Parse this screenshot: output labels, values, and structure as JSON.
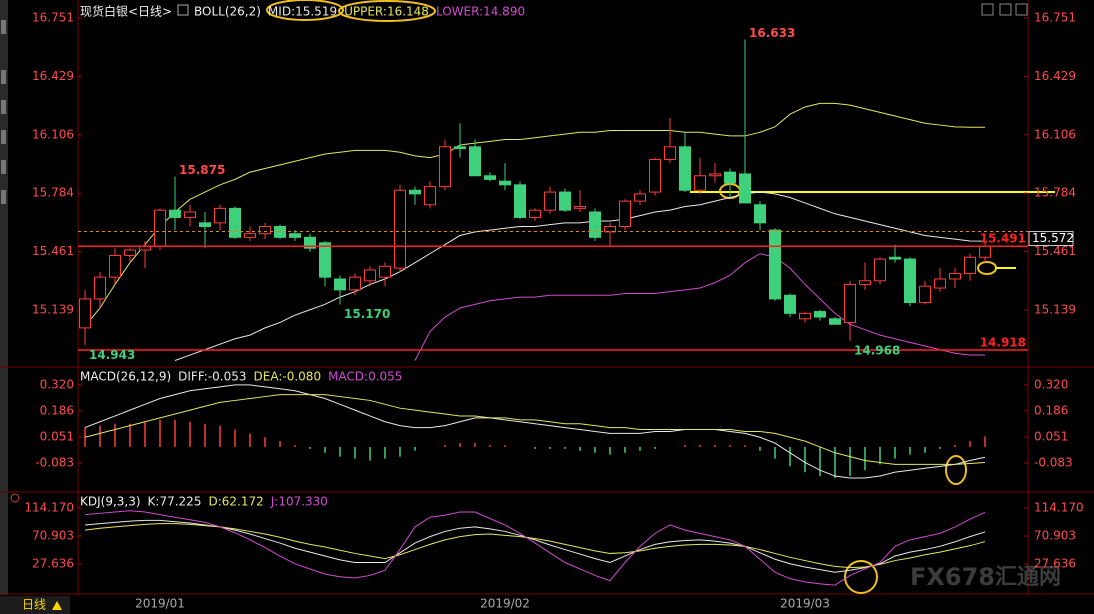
{
  "chart_data": [
    {
      "type": "candlestick",
      "title": "现货白银<日线>",
      "indicator": "BOLL(26,2)",
      "categories": [
        null,
        null,
        null,
        null,
        null,
        "2019/01",
        null,
        null,
        null,
        null,
        null,
        null,
        null,
        null,
        null,
        null,
        null,
        null,
        null,
        null,
        null,
        null,
        null,
        null,
        null,
        null,
        null,
        null,
        "2019/02",
        null,
        null,
        null,
        null,
        null,
        null,
        null,
        null,
        null,
        null,
        null,
        null,
        null,
        null,
        null,
        null,
        null,
        null,
        null,
        "2019/03",
        null,
        null,
        null,
        null,
        null,
        null,
        null,
        null,
        null,
        null,
        null,
        null
      ],
      "open": [
        15.04,
        15.2,
        15.32,
        15.44,
        15.47,
        15.49,
        15.69,
        15.65,
        15.62,
        15.62,
        15.7,
        15.54,
        15.56,
        15.6,
        15.56,
        15.54,
        15.51,
        15.31,
        15.25,
        15.3,
        15.32,
        15.37,
        15.8,
        15.72,
        15.82,
        16.04,
        16.04,
        15.88,
        15.85,
        15.83,
        15.65,
        15.69,
        15.79,
        15.7,
        15.68,
        15.57,
        15.6,
        15.74,
        15.79,
        15.97,
        16.04,
        15.8,
        15.88,
        15.9,
        15.89,
        15.72,
        15.58,
        15.22,
        15.09,
        15.13,
        15.09,
        15.07,
        15.28,
        15.3,
        15.43,
        15.42,
        15.18,
        15.26,
        15.31,
        15.34,
        15.43
      ],
      "high": [
        15.25,
        15.35,
        15.48,
        15.48,
        15.52,
        15.7,
        15.875,
        15.72,
        15.68,
        15.72,
        15.71,
        15.6,
        15.62,
        15.61,
        15.58,
        15.56,
        15.52,
        15.33,
        15.34,
        15.38,
        15.4,
        15.83,
        15.82,
        15.85,
        16.08,
        16.17,
        16.08,
        15.9,
        15.95,
        15.85,
        15.7,
        15.82,
        15.81,
        15.8,
        15.7,
        15.62,
        15.75,
        15.8,
        15.98,
        16.2,
        16.12,
        15.98,
        15.95,
        15.92,
        16.633,
        15.74,
        15.59,
        15.23,
        15.13,
        15.14,
        15.1,
        15.3,
        15.4,
        15.43,
        15.5,
        15.43,
        15.3,
        15.37,
        15.37,
        15.45,
        15.52
      ],
      "low": [
        14.943,
        15.15,
        15.28,
        15.4,
        15.37,
        15.47,
        15.58,
        15.6,
        15.48,
        15.58,
        15.53,
        15.52,
        15.53,
        15.53,
        15.52,
        15.46,
        15.27,
        15.17,
        15.22,
        15.27,
        15.27,
        15.35,
        15.72,
        15.7,
        15.8,
        15.98,
        15.88,
        15.85,
        15.8,
        15.64,
        15.63,
        15.67,
        15.68,
        15.68,
        15.52,
        15.49,
        15.58,
        15.72,
        15.77,
        15.95,
        15.79,
        15.78,
        15.84,
        15.76,
        15.73,
        15.58,
        15.19,
        15.1,
        15.07,
        15.08,
        15.06,
        14.968,
        15.25,
        15.28,
        15.4,
        15.16,
        15.17,
        15.24,
        15.26,
        15.3,
        15.4
      ],
      "close": [
        15.2,
        15.32,
        15.44,
        15.47,
        15.49,
        15.69,
        15.65,
        15.68,
        15.6,
        15.7,
        15.54,
        15.56,
        15.6,
        15.54,
        15.54,
        15.48,
        15.32,
        15.25,
        15.32,
        15.36,
        15.38,
        15.8,
        15.78,
        15.82,
        16.04,
        16.03,
        15.88,
        15.86,
        15.83,
        15.65,
        15.69,
        15.79,
        15.69,
        15.71,
        15.54,
        15.6,
        15.74,
        15.78,
        15.97,
        16.04,
        15.8,
        15.88,
        15.89,
        15.84,
        15.73,
        15.62,
        15.2,
        15.12,
        15.12,
        15.1,
        15.06,
        15.28,
        15.3,
        15.42,
        15.42,
        15.18,
        15.27,
        15.31,
        15.34,
        15.43,
        15.49
      ],
      "up_color": "#ff3c3c",
      "down_color": "#3ed07a",
      "series": [
        {
          "label": "MID:15.519",
          "color": "#e8e8e8",
          "values": [
            null,
            null,
            null,
            null,
            null,
            null,
            14.86,
            14.89,
            14.92,
            14.95,
            14.98,
            15.0,
            15.04,
            15.07,
            15.11,
            15.14,
            15.17,
            15.21,
            15.24,
            15.28,
            15.31,
            15.35,
            15.4,
            15.45,
            15.5,
            15.55,
            15.57,
            15.58,
            15.59,
            15.6,
            15.6,
            15.61,
            15.62,
            15.62,
            15.63,
            15.63,
            15.64,
            15.66,
            15.68,
            15.69,
            15.71,
            15.72,
            15.74,
            15.76,
            15.78,
            15.79,
            15.78,
            15.76,
            15.73,
            15.7,
            15.67,
            15.65,
            15.63,
            15.61,
            15.59,
            15.57,
            15.55,
            15.54,
            15.53,
            15.52,
            15.519
          ]
        },
        {
          "label": "UPPER:16.148",
          "color": "#e6e65a",
          "values": [
            15.05,
            15.15,
            15.28,
            15.4,
            15.5,
            15.6,
            15.68,
            15.75,
            15.79,
            15.83,
            15.86,
            15.9,
            15.92,
            15.94,
            15.96,
            15.98,
            16.0,
            16.01,
            16.02,
            16.02,
            16.02,
            16.01,
            15.99,
            15.98,
            16.0,
            16.05,
            16.06,
            16.07,
            16.08,
            16.08,
            16.09,
            16.1,
            16.11,
            16.12,
            16.12,
            16.13,
            16.13,
            16.13,
            16.13,
            16.13,
            16.12,
            16.12,
            16.11,
            16.1,
            16.1,
            16.12,
            16.15,
            16.22,
            16.26,
            16.28,
            16.28,
            16.27,
            16.25,
            16.23,
            16.21,
            16.19,
            16.17,
            16.16,
            16.15,
            16.148,
            16.148
          ]
        },
        {
          "label": "LOWER:14.890",
          "color": "#d24bd2",
          "values": [
            null,
            null,
            null,
            null,
            null,
            null,
            null,
            null,
            null,
            null,
            null,
            null,
            null,
            null,
            null,
            null,
            null,
            null,
            null,
            null,
            null,
            null,
            14.86,
            15.02,
            15.1,
            15.15,
            15.17,
            15.19,
            15.2,
            15.21,
            15.21,
            15.22,
            15.22,
            15.22,
            15.22,
            15.22,
            15.23,
            15.23,
            15.23,
            15.24,
            15.25,
            15.26,
            15.29,
            15.33,
            15.4,
            15.45,
            15.43,
            15.37,
            15.28,
            15.2,
            15.12,
            15.06,
            15.03,
            15.0,
            14.98,
            14.96,
            14.94,
            14.92,
            14.9,
            14.89,
            14.89
          ]
        }
      ],
      "ylim": [
        14.835,
        16.823
      ],
      "yticks": [
        16.751,
        16.429,
        16.106,
        15.784,
        15.461,
        15.139
      ],
      "hlines": [
        {
          "value": 15.491,
          "label": "15.491",
          "color": "#ff2020"
        },
        {
          "value": 14.918,
          "label": "14.918",
          "color": "#ff2020"
        }
      ],
      "price_line": {
        "value": 15.572,
        "label": "15.572",
        "color": "#d08a2a"
      },
      "annotations": [
        {
          "value": 16.633,
          "label": "16.633"
        },
        {
          "value": 15.875,
          "label": "15.875"
        },
        {
          "value": 15.17,
          "label": "15.170"
        },
        {
          "value": 14.943,
          "label": "14.943"
        },
        {
          "value": 14.968,
          "label": "14.968"
        }
      ]
    },
    {
      "type": "combo",
      "title": "MACD(26,12,9)",
      "up_color": "#ff3c3c",
      "down_color": "#3ed07a",
      "series": [
        {
          "label": "DIFF:-0.053",
          "color": "#e8e8e8",
          "values": [
            0.1,
            0.13,
            0.16,
            0.19,
            0.22,
            0.25,
            0.27,
            0.29,
            0.3,
            0.31,
            0.32,
            0.32,
            0.31,
            0.3,
            0.29,
            0.27,
            0.25,
            0.22,
            0.19,
            0.16,
            0.13,
            0.11,
            0.1,
            0.1,
            0.11,
            0.13,
            0.15,
            0.15,
            0.14,
            0.13,
            0.12,
            0.11,
            0.1,
            0.09,
            0.08,
            0.07,
            0.07,
            0.07,
            0.08,
            0.08,
            0.09,
            0.09,
            0.09,
            0.08,
            0.07,
            0.05,
            0.02,
            -0.03,
            -0.08,
            -0.12,
            -0.15,
            -0.16,
            -0.16,
            -0.15,
            -0.13,
            -0.12,
            -0.11,
            -0.1,
            -0.09,
            -0.07,
            -0.053
          ]
        },
        {
          "label": "DEA:-0.080",
          "color": "#e6e65a",
          "values": [
            0.05,
            0.07,
            0.09,
            0.11,
            0.13,
            0.15,
            0.17,
            0.19,
            0.21,
            0.23,
            0.24,
            0.25,
            0.26,
            0.27,
            0.27,
            0.27,
            0.27,
            0.26,
            0.25,
            0.24,
            0.22,
            0.2,
            0.19,
            0.18,
            0.17,
            0.16,
            0.16,
            0.15,
            0.15,
            0.14,
            0.14,
            0.13,
            0.12,
            0.12,
            0.11,
            0.1,
            0.1,
            0.09,
            0.09,
            0.09,
            0.09,
            0.09,
            0.09,
            0.09,
            0.08,
            0.08,
            0.07,
            0.05,
            0.03,
            0.0,
            -0.03,
            -0.05,
            -0.07,
            -0.08,
            -0.09,
            -0.09,
            -0.09,
            -0.09,
            -0.09,
            -0.085,
            -0.08
          ]
        },
        {
          "label": "MACD:0.055",
          "color": "#d24bd2",
          "style": "bar",
          "values": [
            0.1,
            0.11,
            0.12,
            0.12,
            0.13,
            0.14,
            0.14,
            0.13,
            0.12,
            0.11,
            0.09,
            0.07,
            0.05,
            0.03,
            0.01,
            -0.01,
            -0.03,
            -0.05,
            -0.06,
            -0.07,
            -0.06,
            -0.05,
            -0.02,
            0.0,
            0.01,
            0.02,
            0.02,
            0.01,
            0.01,
            0.0,
            -0.01,
            -0.01,
            -0.01,
            -0.02,
            -0.03,
            -0.04,
            -0.03,
            -0.02,
            -0.01,
            0.0,
            0.01,
            0.01,
            0.01,
            0.01,
            0.01,
            -0.02,
            -0.06,
            -0.1,
            -0.13,
            -0.15,
            -0.16,
            -0.15,
            -0.12,
            -0.09,
            -0.06,
            -0.04,
            -0.03,
            -0.01,
            0.01,
            0.03,
            0.055
          ]
        }
      ],
      "ylim": [
        -0.222,
        0.397
      ],
      "yticks": [
        {
          "value": 0.32,
          "label": "0.320"
        },
        0.186,
        0.051,
        -0.083
      ]
    },
    {
      "type": "line",
      "title": "KDJ(9,3,3)",
      "series": [
        {
          "label": "K:77.225",
          "color": "#e8e8e8",
          "values": [
            88,
            90,
            92,
            94,
            95,
            95,
            93,
            91,
            88,
            85,
            80,
            74,
            67,
            60,
            52,
            46,
            40,
            34,
            30,
            30,
            30,
            45,
            60,
            70,
            78,
            83,
            85,
            82,
            78,
            72,
            65,
            57,
            50,
            43,
            36,
            30,
            40,
            50,
            58,
            62,
            64,
            65,
            63,
            60,
            55,
            45,
            35,
            28,
            23,
            19,
            15,
            18,
            22,
            28,
            40,
            46,
            50,
            55,
            62,
            70,
            77.225
          ]
        },
        {
          "label": "D:62.172",
          "color": "#e6e65a",
          "values": [
            80,
            83,
            85,
            87,
            89,
            90,
            90,
            89,
            87,
            85,
            82,
            78,
            74,
            69,
            63,
            58,
            54,
            49,
            44,
            40,
            36,
            42,
            50,
            58,
            65,
            70,
            73,
            74,
            72,
            70,
            67,
            63,
            58,
            53,
            48,
            44,
            45,
            48,
            52,
            55,
            57,
            58,
            58,
            57,
            55,
            50,
            44,
            38,
            33,
            28,
            24,
            22,
            23,
            27,
            33,
            37,
            42,
            46,
            51,
            56,
            62.172
          ]
        },
        {
          "label": "J:107.330",
          "color": "#d24bd2",
          "values": [
            104,
            106,
            108,
            110,
            108,
            104,
            100,
            96,
            92,
            85,
            76,
            65,
            53,
            40,
            28,
            20,
            12,
            8,
            6,
            10,
            18,
            50,
            85,
            100,
            103,
            108,
            108,
            98,
            88,
            75,
            60,
            45,
            30,
            20,
            10,
            2,
            30,
            55,
            75,
            88,
            80,
            75,
            70,
            65,
            55,
            35,
            15,
            5,
            0,
            -3,
            -5,
            10,
            20,
            30,
            55,
            65,
            70,
            75,
            85,
            97,
            107.33
          ]
        }
      ],
      "ylim": [
        -12.5,
        134.3
      ],
      "yticks": [
        {
          "value": 114.17,
          "label": "114.170"
        },
        70.903,
        27.636
      ]
    }
  ],
  "ui": {
    "period": "日线",
    "watermark": "FX678",
    "watermark_cn": "汇通网"
  }
}
